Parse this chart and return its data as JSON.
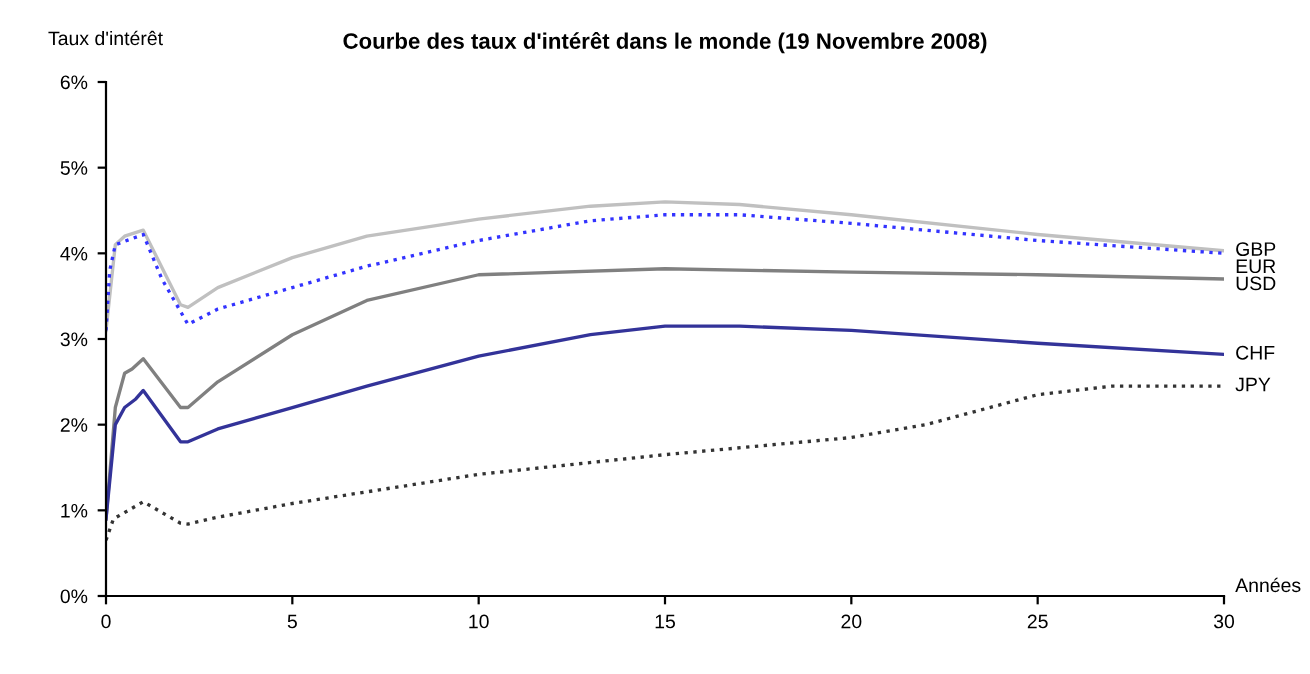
{
  "chart_data": {
    "type": "line",
    "title": "Courbe des taux d'intérêt dans le monde (19 Novembre 2008)",
    "ylabel": "Taux d'intérêt",
    "xlabel": "Années",
    "xlim": [
      0,
      30
    ],
    "xticks": [
      0,
      5,
      10,
      15,
      20,
      25,
      30
    ],
    "ylim": [
      0,
      6
    ],
    "yticks": [
      {
        "value": 0,
        "label": "0%"
      },
      {
        "value": 1,
        "label": "1%"
      },
      {
        "value": 2,
        "label": "2%"
      },
      {
        "value": 3,
        "label": "3%"
      },
      {
        "value": 4,
        "label": "4%"
      },
      {
        "value": 5,
        "label": "5%"
      },
      {
        "value": 6,
        "label": "6%"
      }
    ],
    "grid": false,
    "legend": false,
    "marker": "none",
    "series": [
      {
        "name": "GBP",
        "color": "#c0c0c0",
        "line_style": "solid",
        "x": [
          0,
          0.25,
          0.5,
          1,
          2,
          2.2,
          3,
          5,
          7,
          10,
          13,
          15,
          17,
          20,
          25,
          30
        ],
        "values": [
          3.1,
          4.1,
          4.2,
          4.27,
          3.4,
          3.37,
          3.6,
          3.95,
          4.2,
          4.4,
          4.55,
          4.6,
          4.57,
          4.45,
          4.22,
          4.03
        ]
      },
      {
        "name": "EUR",
        "color": "#3333ff",
        "line_style": "dotted",
        "x": [
          0,
          0.1,
          0.25,
          1,
          1.5,
          2.2,
          3,
          5,
          7,
          10,
          13,
          15,
          17,
          20,
          25,
          30
        ],
        "values": [
          3.1,
          3.8,
          4.1,
          4.22,
          3.7,
          3.17,
          3.35,
          3.6,
          3.85,
          4.15,
          4.38,
          4.45,
          4.45,
          4.35,
          4.15,
          4.0
        ]
      },
      {
        "name": "USD",
        "color": "#808080",
        "line_style": "solid",
        "x": [
          0,
          0.25,
          0.5,
          0.7,
          1,
          2,
          2.2,
          3,
          5,
          7,
          10,
          15,
          20,
          25,
          30
        ],
        "values": [
          0.9,
          2.2,
          2.6,
          2.65,
          2.77,
          2.2,
          2.2,
          2.5,
          3.05,
          3.45,
          3.75,
          3.82,
          3.78,
          3.75,
          3.7
        ]
      },
      {
        "name": "CHF",
        "color": "#333399",
        "line_style": "solid",
        "x": [
          0,
          0.25,
          0.5,
          0.8,
          1,
          2,
          2.2,
          3,
          5,
          7,
          10,
          13,
          15,
          17,
          20,
          25,
          30
        ],
        "values": [
          0.9,
          2.0,
          2.2,
          2.3,
          2.4,
          1.8,
          1.8,
          1.95,
          2.2,
          2.45,
          2.8,
          3.05,
          3.15,
          3.15,
          3.1,
          2.95,
          2.82
        ]
      },
      {
        "name": "JPY",
        "color": "#333333",
        "line_style": "dotted",
        "x": [
          0,
          0.2,
          1,
          2,
          2.2,
          3,
          5,
          10,
          15,
          20,
          22,
          25,
          27,
          30
        ],
        "values": [
          0.65,
          0.9,
          1.1,
          0.85,
          0.84,
          0.92,
          1.08,
          1.42,
          1.65,
          1.85,
          2.0,
          2.35,
          2.45,
          2.45
        ]
      }
    ]
  }
}
